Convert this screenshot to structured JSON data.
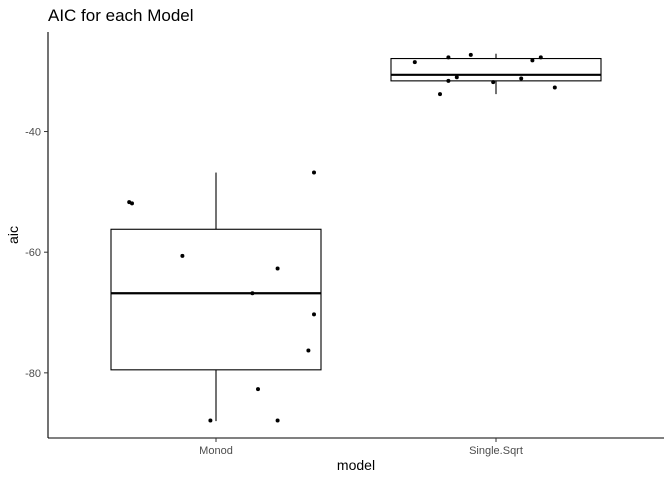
{
  "chart_data": {
    "type": "boxplot",
    "title": "AIC for each Model",
    "xlabel": "model",
    "ylabel": "aic",
    "categories": [
      "Monod",
      "Single.Sqrt"
    ],
    "yticks": [
      -40,
      -60,
      -80
    ],
    "ylim": [
      -90.8,
      -23.5
    ],
    "grid": false,
    "boxes": [
      {
        "category": "Monod",
        "q1": -79.5,
        "median": -66.8,
        "q3": -56.2,
        "whisker_low": -88.0,
        "whisker_high": -46.8
      },
      {
        "category": "Single.Sqrt",
        "q1": -31.6,
        "median": -30.6,
        "q3": -27.9,
        "whisker_low": -33.8,
        "whisker_high": -27.1
      }
    ],
    "points": [
      {
        "category": "Monod",
        "jitter": -0.31,
        "y": -51.7
      },
      {
        "category": "Monod",
        "jitter": -0.3,
        "y": -51.9
      },
      {
        "category": "Monod",
        "jitter": 0.35,
        "y": -46.8
      },
      {
        "category": "Monod",
        "jitter": -0.12,
        "y": -60.6
      },
      {
        "category": "Monod",
        "jitter": 0.22,
        "y": -62.7
      },
      {
        "category": "Monod",
        "jitter": 0.13,
        "y": -66.8
      },
      {
        "category": "Monod",
        "jitter": 0.35,
        "y": -70.3
      },
      {
        "category": "Monod",
        "jitter": 0.33,
        "y": -76.3
      },
      {
        "category": "Monod",
        "jitter": 0.15,
        "y": -82.7
      },
      {
        "category": "Monod",
        "jitter": -0.02,
        "y": -87.9
      },
      {
        "category": "Monod",
        "jitter": 0.22,
        "y": -87.9
      },
      {
        "category": "Single.Sqrt",
        "jitter": -0.29,
        "y": -28.5
      },
      {
        "category": "Single.Sqrt",
        "jitter": -0.17,
        "y": -27.7
      },
      {
        "category": "Single.Sqrt",
        "jitter": -0.09,
        "y": -27.3
      },
      {
        "category": "Single.Sqrt",
        "jitter": -0.14,
        "y": -31.0
      },
      {
        "category": "Single.Sqrt",
        "jitter": -0.17,
        "y": -31.6
      },
      {
        "category": "Single.Sqrt",
        "jitter": -0.01,
        "y": -31.8
      },
      {
        "category": "Single.Sqrt",
        "jitter": -0.2,
        "y": -33.8
      },
      {
        "category": "Single.Sqrt",
        "jitter": 0.09,
        "y": -31.2
      },
      {
        "category": "Single.Sqrt",
        "jitter": 0.13,
        "y": -28.2
      },
      {
        "category": "Single.Sqrt",
        "jitter": 0.16,
        "y": -27.7
      },
      {
        "category": "Single.Sqrt",
        "jitter": 0.21,
        "y": -32.7
      }
    ]
  }
}
